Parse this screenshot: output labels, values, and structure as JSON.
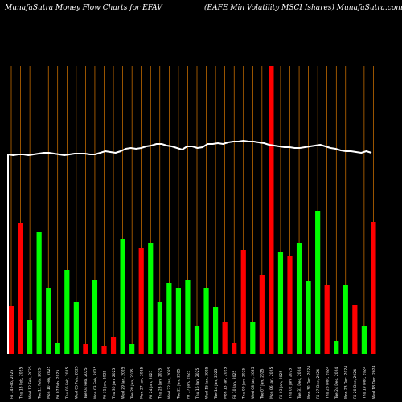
{
  "header": {
    "left": "MunafaSutra  Money Flow  Charts for EFAV",
    "right": "(EAFE Min  Volatility MSCI Ishares) MunafaSutra.com"
  },
  "chart_data": {
    "type": "bar",
    "title": "MunafaSutra  Money Flow  Charts for EFAV",
    "subtitle": "(EAFE Min  Volatility MSCI Ishares) MunafaSutra.com",
    "colors": {
      "up": "#00ff00",
      "down": "#ff0000",
      "grid": "#ff8c00",
      "price": "#ffffff",
      "background": "#000000"
    },
    "grid": true,
    "categories": [
      "Fri 14 Feb, 2025",
      "Thu 13 Feb, 2025",
      "Wed 12 Feb, 2025",
      "Tue 11 Feb, 2025",
      "Mon 10 Feb, 2025",
      "Fri 07 Feb, 2025",
      "Thu 06 Feb, 2025",
      "Wed 05 Feb, 2025",
      "Tue 04 Feb, 2025",
      "Mon 03 Feb, 2025",
      "Fri 31 Jan, 2025",
      "Thu 30 Jan, 2025",
      "Wed 29 Jan, 2025",
      "Tue 28 Jan, 2025",
      "Mon 27 Jan, 2025",
      "Fri 24 Jan, 2025",
      "Thu 23 Jan, 2025",
      "Wed 22 Jan, 2025",
      "Tue 21 Jan, 2025",
      "Fri 17 Jan, 2025",
      "Thu 16 Jan, 2025",
      "Wed 15 Jan, 2025",
      "Tue 14 Jan, 2025",
      "Mon 13 Jan, 2025",
      "Fri 10 Jan, 2025",
      "Thu 09 Jan, 2025",
      "Wed 08 Jan, 2025",
      "Tue 07 Jan, 2025",
      "Mon 06 Jan, 2025",
      "Fri 03 Jan, 2025",
      "Thu 02 Jan, 2025",
      "Tue 31 Dec, 2024",
      "Mon 30 Dec, 2024",
      "Fri 27 Dec, 2024",
      "Thu 26 Dec, 2024",
      "Tue 24 Dec, 2024",
      "Mon 23 Dec, 2024",
      "Fri 20 Dec, 2024",
      "Thu 19 Dec, 2024",
      "Wed 18 Dec, 2024"
    ],
    "values": [
      60,
      163,
      42,
      152,
      82,
      14,
      104,
      64,
      12,
      92,
      10,
      21,
      143,
      12,
      132,
      138,
      64,
      88,
      82,
      92,
      35,
      82,
      58,
      40,
      13,
      129,
      40,
      98,
      358,
      126,
      122,
      138,
      90,
      178,
      86,
      16,
      85,
      61,
      34,
      164
    ],
    "directions": [
      "down",
      "down",
      "up",
      "up",
      "up",
      "up",
      "up",
      "up",
      "down",
      "up",
      "down",
      "down",
      "up",
      "up",
      "down",
      "up",
      "up",
      "up",
      "up",
      "up",
      "up",
      "up",
      "up",
      "down",
      "down",
      "down",
      "up",
      "down",
      "down",
      "up",
      "down",
      "up",
      "up",
      "up",
      "down",
      "up",
      "up",
      "down",
      "up",
      "down"
    ],
    "price_line": [
      198,
      197,
      198,
      198,
      197,
      198,
      199,
      200,
      200,
      199,
      198,
      197,
      198,
      199,
      199,
      199,
      198,
      198,
      200,
      202,
      201,
      200,
      202,
      205,
      206,
      205,
      206,
      208,
      209,
      211,
      211,
      209,
      208,
      206,
      204,
      208,
      208,
      206,
      207,
      211,
      211,
      212,
      211,
      213,
      214,
      214,
      215,
      214,
      214,
      213,
      212,
      210,
      209,
      208,
      207,
      207,
      206,
      206,
      207,
      208,
      209,
      210,
      208,
      206,
      205,
      203,
      202,
      202,
      201,
      200,
      202,
      200
    ],
    "price_range": [
      150,
      240
    ]
  }
}
